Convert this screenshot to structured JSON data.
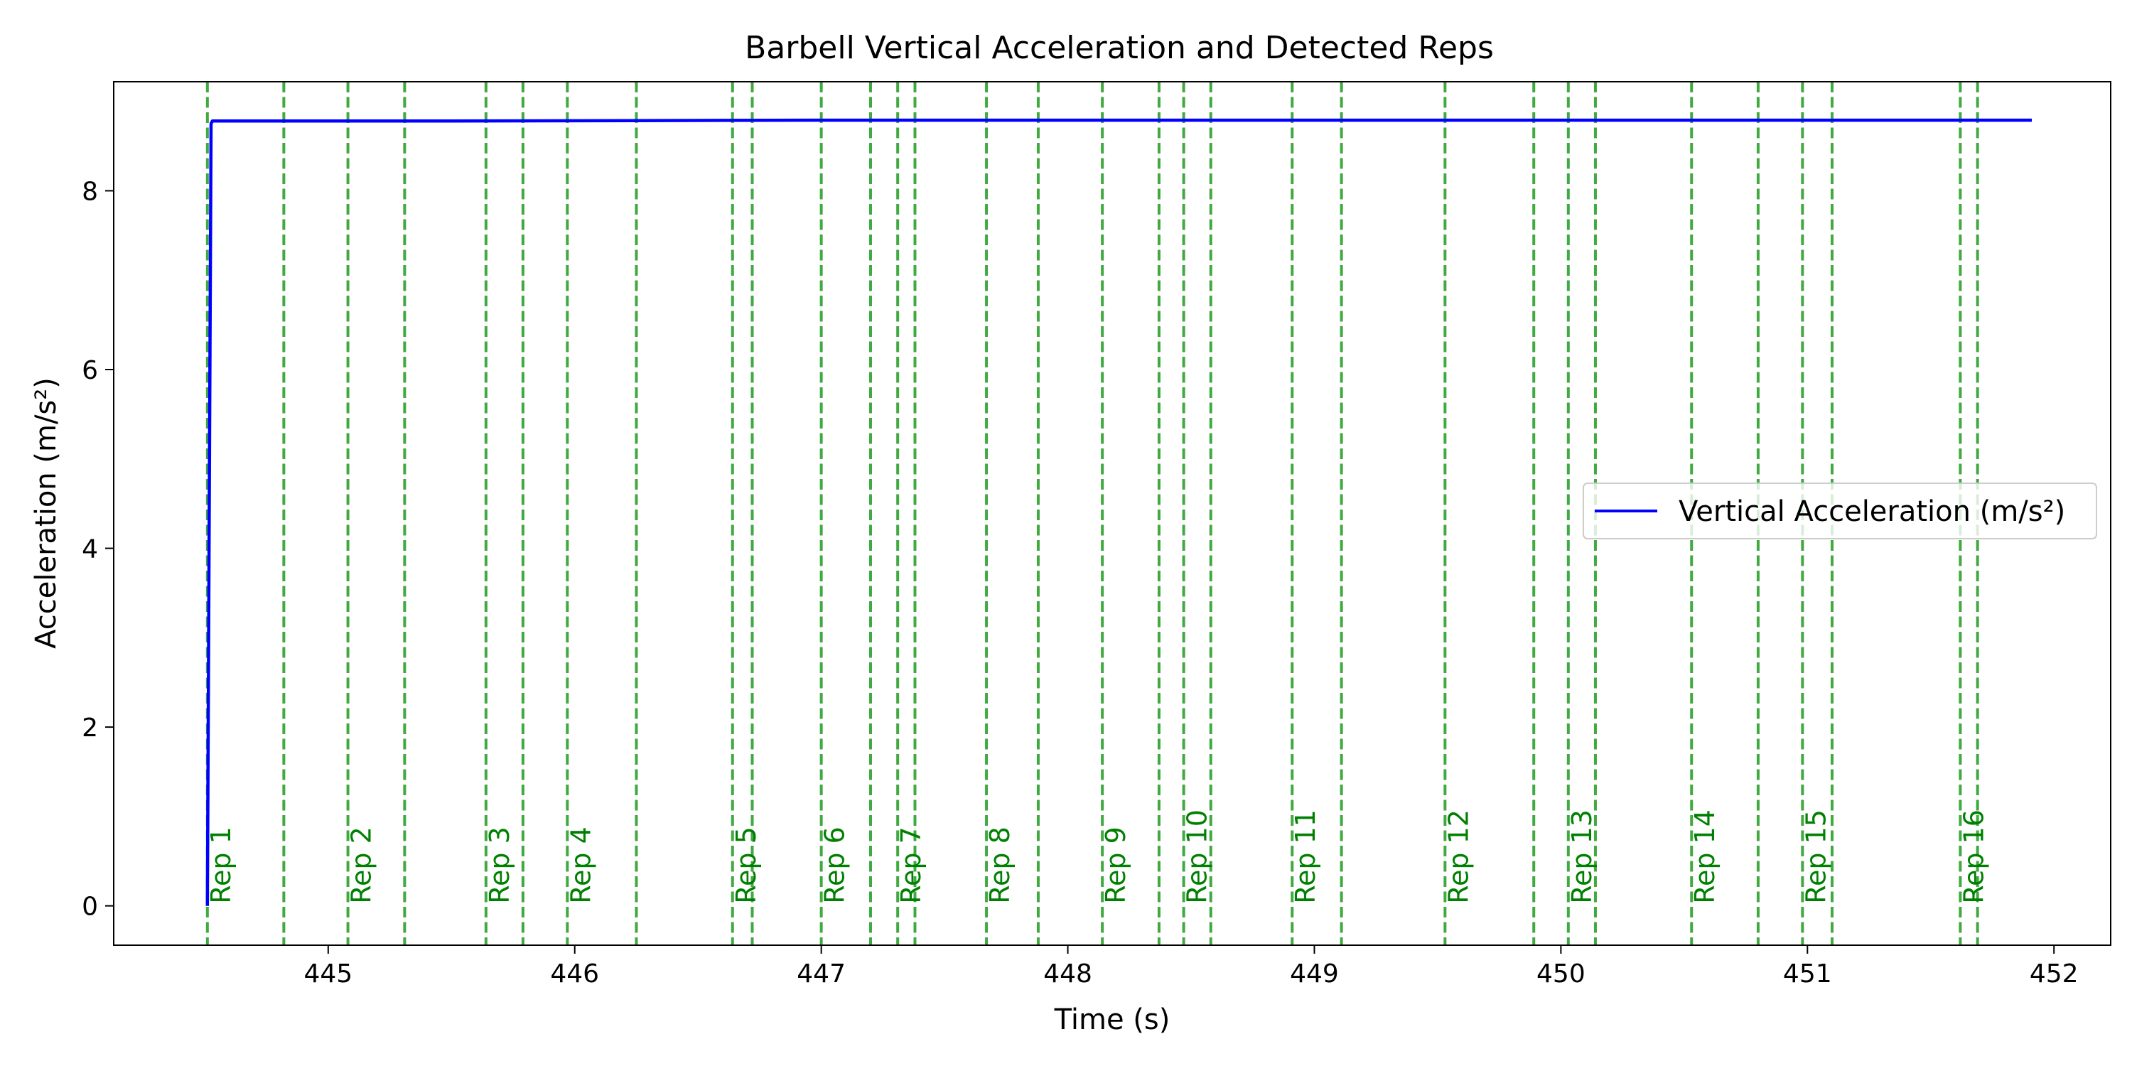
{
  "chart_data": {
    "type": "line",
    "title": "Barbell Vertical Acceleration and Detected Reps",
    "xlabel": "Time (s)",
    "ylabel": "Acceleration (m/s²)",
    "xlim": [
      444.13,
      452.23
    ],
    "ylim": [
      -0.44,
      9.22
    ],
    "xticks": [
      445,
      446,
      447,
      448,
      449,
      450,
      451,
      452
    ],
    "yticks": [
      0,
      2,
      4,
      6,
      8
    ],
    "grid": false,
    "legend_placement": "center-right",
    "colors": {
      "series": "#0000ff",
      "reps": "#2ca02c",
      "rep_text": "#008000"
    },
    "series": [
      {
        "name": "Vertical Acceleration (m/s²)",
        "x": [
          444.51,
          444.525,
          444.53,
          445.5,
          447.0,
          449.0,
          451.0,
          451.91
        ],
        "y": [
          0.0,
          8.75,
          8.78,
          8.78,
          8.79,
          8.79,
          8.79,
          8.79
        ]
      }
    ],
    "rep_lines": [
      444.51,
      444.82,
      445.08,
      445.31,
      445.64,
      445.79,
      445.97,
      446.25,
      446.64,
      446.72,
      447.0,
      447.2,
      447.31,
      447.38,
      447.67,
      447.88,
      448.14,
      448.37,
      448.47,
      448.58,
      448.91,
      449.11,
      449.53,
      449.89,
      450.03,
      450.14,
      450.53,
      450.8,
      450.98,
      451.1,
      451.62,
      451.69
    ],
    "reps": [
      {
        "label": "Rep 1",
        "x": 444.51
      },
      {
        "label": "Rep 2",
        "x": 445.08
      },
      {
        "label": "Rep 3",
        "x": 445.64
      },
      {
        "label": "Rep 4",
        "x": 445.97
      },
      {
        "label": "Rep 5",
        "x": 446.64
      },
      {
        "label": "Rep 6",
        "x": 447.0
      },
      {
        "label": "Rep 7",
        "x": 447.31
      },
      {
        "label": "Rep 8",
        "x": 447.67
      },
      {
        "label": "Rep 9",
        "x": 448.14
      },
      {
        "label": "Rep 10",
        "x": 448.47
      },
      {
        "label": "Rep 11",
        "x": 448.91
      },
      {
        "label": "Rep 12",
        "x": 449.53
      },
      {
        "label": "Rep 13",
        "x": 450.03
      },
      {
        "label": "Rep 14",
        "x": 450.53
      },
      {
        "label": "Rep 15",
        "x": 450.98
      },
      {
        "label": "Rep 16",
        "x": 451.62
      }
    ]
  }
}
